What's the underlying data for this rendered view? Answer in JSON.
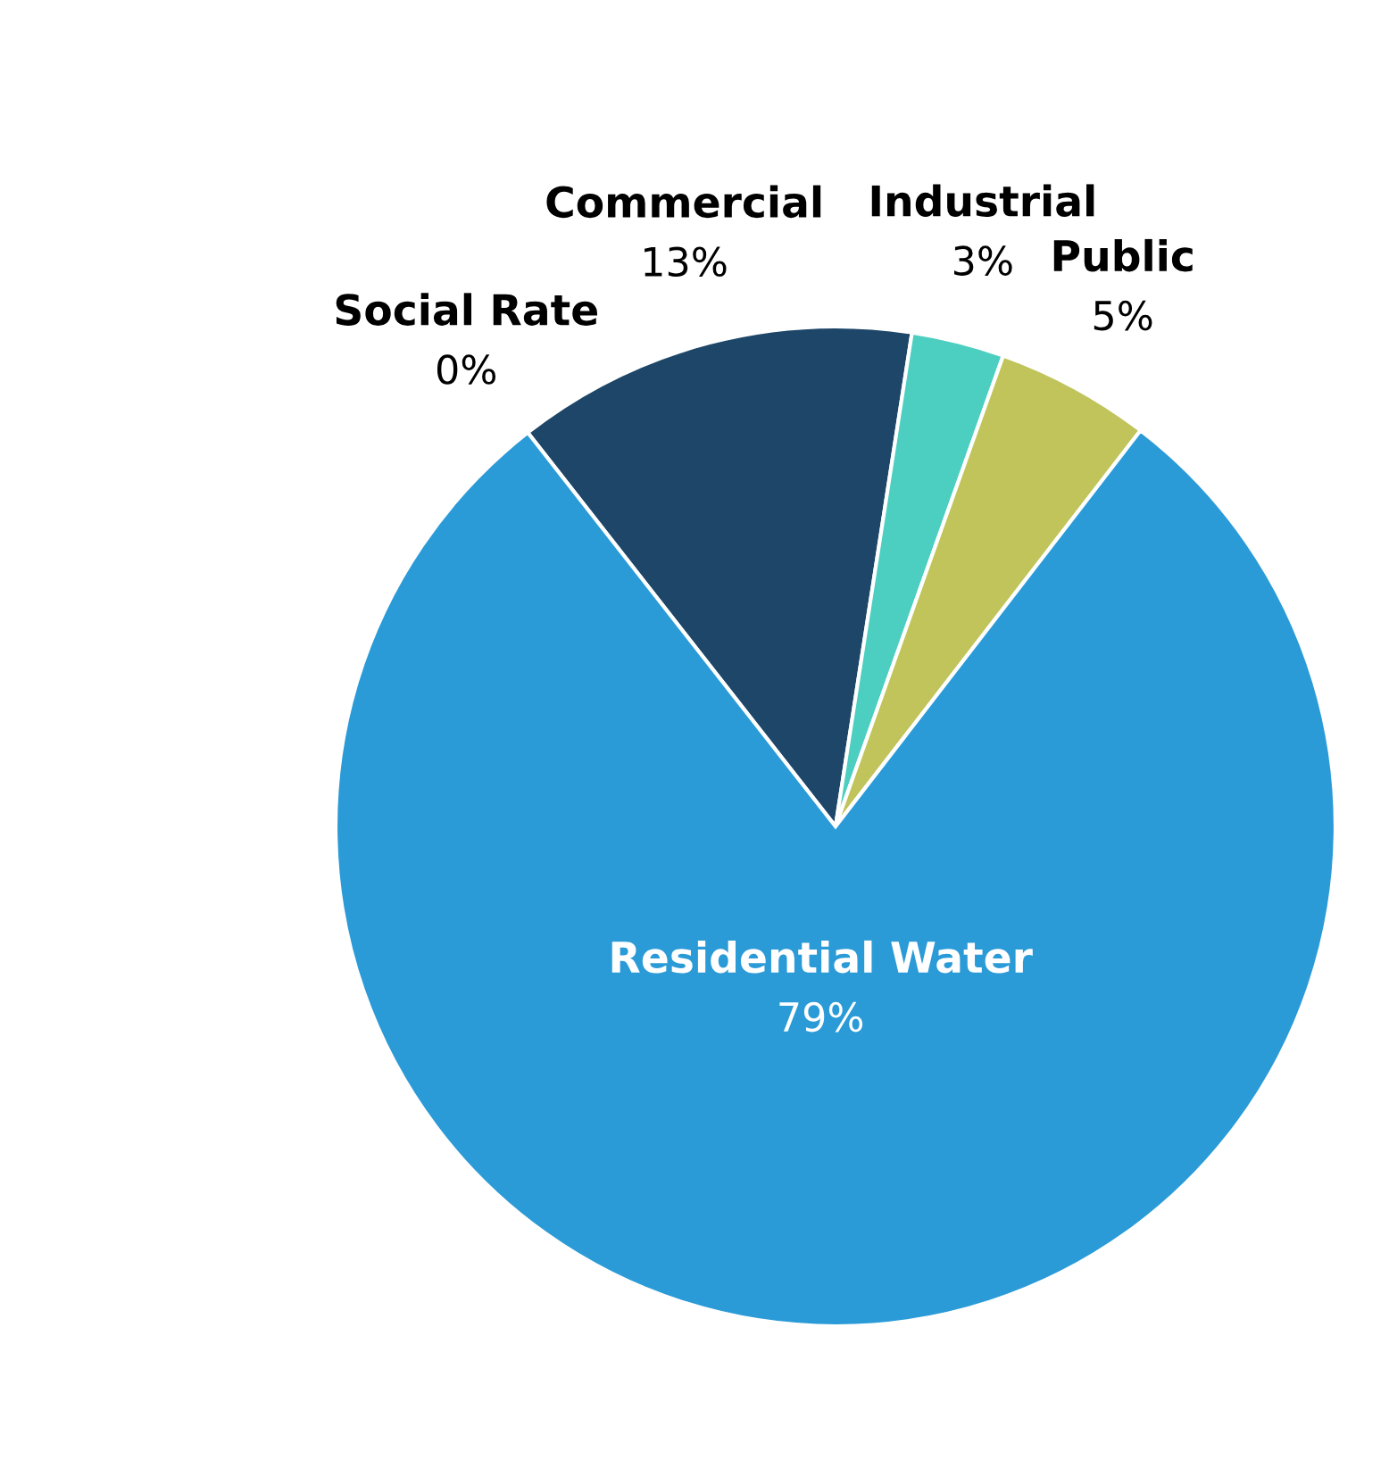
{
  "chart_data": {
    "type": "pie",
    "categories": [
      "Social Rate",
      "Commercial",
      "Industrial",
      "Public",
      "Residential Water"
    ],
    "values": [
      0,
      13,
      3,
      5,
      79
    ],
    "value_labels": [
      "0%",
      "13%",
      "3%",
      "5%",
      "79%"
    ],
    "colors": [
      "#5fd0a8",
      "#1d4668",
      "#4ccfc0",
      "#c0c45a",
      "#2b9bd8"
    ]
  }
}
